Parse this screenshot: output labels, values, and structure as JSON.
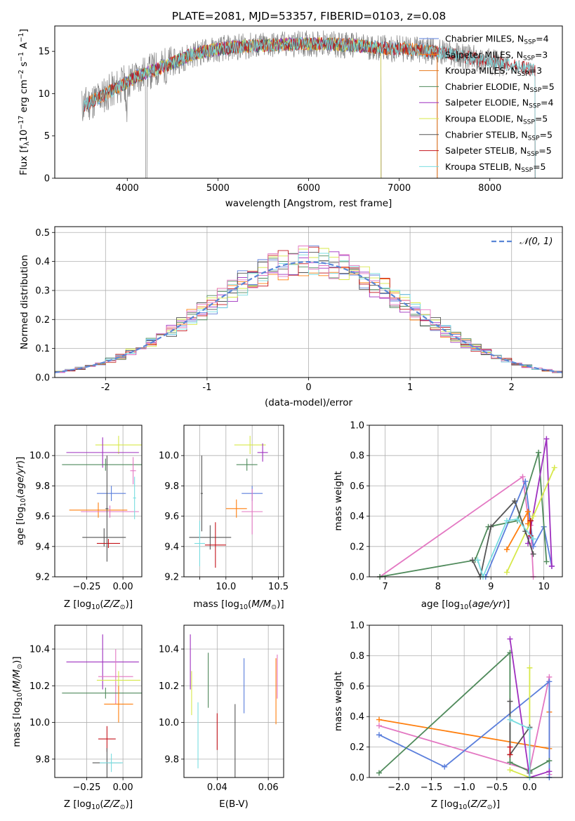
{
  "figure": {
    "title": "PLATE=2081, MJD=53357, FIBERID=0103, z=0.08",
    "model_colors": {
      "Chabrier MILES": "#5b7fdc",
      "Salpeter MILES": "#ff7f0e",
      "Kroupa MILES": "#e8781c",
      "Chabrier ELODIE": "#4f8a5b",
      "Salpeter ELODIE": "#9e2fbf",
      "Kroupa ELODIE": "#d7e84a",
      "Chabrier STELIB": "#555555",
      "Salpeter STELIB": "#c4141c",
      "Kroupa STELIB": "#79dde0"
    },
    "data_color": "#808080",
    "gaussian_color": "#5a86d6"
  },
  "chart_data": [
    {
      "type": "line",
      "panel": "spectrum",
      "xlabel": "wavelength [Angstrom, rest frame]",
      "ylabel": "Flux [f_λ10^-17 erg cm^-2 s^-1 A^-1]",
      "xlim": [
        3200,
        8800
      ],
      "ylim": [
        0,
        18
      ],
      "xticks": [
        4000,
        5000,
        6000,
        7000,
        8000
      ],
      "yticks": [
        0,
        5,
        10,
        15
      ],
      "grid": false,
      "legend_position": "right",
      "legend": [
        {
          "label": "Chabrier MILES, N",
          "sub": "SSP",
          "suffix": "=4",
          "color": "#5b7fdc"
        },
        {
          "label": "Salpeter MILES, N",
          "sub": "SSP",
          "suffix": "=3",
          "color": "#ff7f0e"
        },
        {
          "label": "Kroupa MILES, N",
          "sub": "SSP",
          "suffix": "=3",
          "color": "#e8781c"
        },
        {
          "label": "Chabrier ELODIE, N",
          "sub": "SSP",
          "suffix": "=5",
          "color": "#4f8a5b"
        },
        {
          "label": "Salpeter ELODIE, N",
          "sub": "SSP",
          "suffix": "=4",
          "color": "#9e2fbf"
        },
        {
          "label": "Kroupa ELODIE, N",
          "sub": "SSP",
          "suffix": "=5",
          "color": "#d7e84a"
        },
        {
          "label": "Chabrier STELIB, N",
          "sub": "SSP",
          "suffix": "=5",
          "color": "#555555"
        },
        {
          "label": "Salpeter STELIB, N",
          "sub": "SSP",
          "suffix": "=5",
          "color": "#c4141c"
        },
        {
          "label": "Kroupa STELIB, N",
          "sub": "SSP",
          "suffix": "=5",
          "color": "#79dde0"
        }
      ],
      "continuum": {
        "x": [
          3500,
          3700,
          3900,
          4100,
          4300,
          4500,
          4700,
          4900,
          5100,
          5300,
          5500,
          5700,
          5900,
          6100,
          6300,
          6500,
          6700,
          6900,
          7100,
          7300,
          7500,
          7700,
          7900,
          8100,
          8300,
          8500
        ],
        "y": [
          8.5,
          9.6,
          10.8,
          12.0,
          12.8,
          13.6,
          14.6,
          15.1,
          15.4,
          15.6,
          15.7,
          15.8,
          15.9,
          15.9,
          15.8,
          15.7,
          15.5,
          15.3,
          15.3,
          15.1,
          14.8,
          14.4,
          14.0,
          13.6,
          13.2,
          12.8
        ]
      },
      "model_ranges": {
        "MILES": [
          3520,
          7420
        ],
        "ELODIE": [
          3900,
          6800
        ],
        "STELIB": [
          3520,
          8500
        ]
      },
      "data_range": [
        3500,
        8200
      ]
    },
    {
      "type": "histogram",
      "panel": "residuals",
      "xlabel": "(data-model)/error",
      "ylabel": "Normed distribution",
      "xlim": [
        -2.5,
        2.5
      ],
      "ylim": [
        0,
        0.52
      ],
      "xticks": [
        -2,
        -1,
        0,
        1,
        2
      ],
      "yticks": [
        0.0,
        0.1,
        0.2,
        0.3,
        0.4,
        0.5
      ],
      "grid": true,
      "legend_position": "top-right",
      "gaussian_label": "𝒩(0, 1)",
      "bin_width": 0.1,
      "bin_start": -2.5,
      "series": [
        {
          "name": "Chabrier MILES",
          "color": "#5b7fdc",
          "seed": 1
        },
        {
          "name": "Salpeter MILES",
          "color": "#ff7f0e",
          "seed": 2
        },
        {
          "name": "Chabrier ELODIE",
          "color": "#4f8a5b",
          "seed": 3
        },
        {
          "name": "Salpeter ELODIE",
          "color": "#9e2fbf",
          "seed": 4
        },
        {
          "name": "Kroupa ELODIE",
          "color": "#d7e84a",
          "seed": 5
        },
        {
          "name": "Chabrier STELIB",
          "color": "#555555",
          "seed": 6
        },
        {
          "name": "Salpeter STELIB",
          "color": "#c4141c",
          "seed": 7
        },
        {
          "name": "Kroupa STELIB",
          "color": "#79dde0",
          "seed": 8
        },
        {
          "name": "Kroupa MILES",
          "color": "#e377c2",
          "seed": 9
        }
      ]
    },
    {
      "type": "scatter",
      "panel": "age-vs-Z",
      "xlabel": "Z [log10(Z/Z⊙)]",
      "ylabel": "age [log10(age/yr)]",
      "xlim": [
        -0.47,
        0.13
      ],
      "ylim": [
        9.2,
        10.2
      ],
      "xticks": [
        -0.25,
        0.0
      ],
      "xticklabels": [
        "−0.25",
        "0.00"
      ],
      "yticks": [
        9.2,
        9.4,
        9.6,
        9.8,
        10.0
      ],
      "grid": true,
      "points": [
        {
          "x": -0.03,
          "y": 10.07,
          "xerr": 0.16,
          "yerr": 0.06,
          "color": "#d7e84a"
        },
        {
          "x": -0.14,
          "y": 10.02,
          "xerr": 0.25,
          "yerr": 0.1,
          "color": "#9e2fbf"
        },
        {
          "x": -0.12,
          "y": 9.94,
          "xerr": 0.3,
          "yerr": 0.04,
          "color": "#4f8a5b"
        },
        {
          "x": 0.07,
          "y": 9.9,
          "xerr": 0.02,
          "yerr": 0.09,
          "color": "#e377c2"
        },
        {
          "x": -0.08,
          "y": 9.75,
          "xerr": 0.1,
          "yerr": 0.05,
          "color": "#5b7fdc"
        },
        {
          "x": -0.17,
          "y": 9.64,
          "xerr": 0.2,
          "yerr": 0.05,
          "color": "#ff7f0e"
        },
        {
          "x": -0.09,
          "y": 9.63,
          "xerr": 0.2,
          "yerr": 0.04,
          "color": "#e377c2"
        },
        {
          "x": 0.08,
          "y": 9.72,
          "xerr": 0.01,
          "yerr": 0.14,
          "color": "#79dde0"
        },
        {
          "x": -0.13,
          "y": 9.46,
          "xerr": 0.15,
          "yerr": 0.06,
          "color": "#555555"
        },
        {
          "x": -0.1,
          "y": 9.42,
          "xerr": 0.08,
          "yerr": 0.03,
          "color": "#c4141c"
        },
        {
          "x": -0.11,
          "y": 9.65,
          "xerr": 0.01,
          "yerr": 0.35,
          "color": "#555555"
        }
      ]
    },
    {
      "type": "scatter",
      "panel": "age-vs-mass",
      "xlabel": "mass [log10(M/M⊙)]",
      "ylabel": "",
      "xlim": [
        9.6,
        10.55
      ],
      "ylim": [
        9.2,
        10.2
      ],
      "xticks": [
        9.75,
        10.0,
        10.25,
        10.5
      ],
      "xticklabels": [
        "",
        "",
        "",
        "10.5"
      ],
      "axis_label_xticks": [
        "10.0",
        "10.5"
      ],
      "yticks": [
        9.2,
        9.4,
        9.6,
        9.8,
        10.0
      ],
      "grid": true,
      "points": [
        {
          "x": 10.23,
          "y": 10.07,
          "xerr": 0.15,
          "yerr": 0.06,
          "color": "#d7e84a"
        },
        {
          "x": 10.35,
          "y": 10.02,
          "xerr": 0.05,
          "yerr": 0.06,
          "color": "#9e2fbf"
        },
        {
          "x": 10.2,
          "y": 9.94,
          "xerr": 0.1,
          "yerr": 0.04,
          "color": "#4f8a5b"
        },
        {
          "x": 10.25,
          "y": 9.75,
          "xerr": 0.1,
          "yerr": 0.05,
          "color": "#5b7fdc"
        },
        {
          "x": 10.1,
          "y": 9.65,
          "xerr": 0.1,
          "yerr": 0.06,
          "color": "#ff7f0e"
        },
        {
          "x": 10.25,
          "y": 9.63,
          "xerr": 0.1,
          "yerr": 0.15,
          "color": "#e377c2"
        },
        {
          "x": 9.85,
          "y": 9.46,
          "xerr": 0.2,
          "yerr": 0.08,
          "color": "#555555"
        },
        {
          "x": 9.9,
          "y": 9.41,
          "xerr": 0.1,
          "yerr": 0.15,
          "color": "#c4141c"
        },
        {
          "x": 9.75,
          "y": 9.42,
          "xerr": 0.05,
          "yerr": 0.15,
          "color": "#79dde0"
        },
        {
          "x": 9.77,
          "y": 9.75,
          "xerr": 0.01,
          "yerr": 0.25,
          "color": "#555555"
        }
      ]
    },
    {
      "type": "line",
      "panel": "mass-weight-vs-age",
      "xlabel": "age [log10(age/yr)]",
      "ylabel": "mass weight",
      "xlim": [
        6.7,
        10.35
      ],
      "ylim": [
        0,
        1
      ],
      "xticks": [
        7,
        8,
        9,
        10
      ],
      "yticks": [
        0.0,
        0.2,
        0.4,
        0.6,
        0.8,
        1.0
      ],
      "grid": true,
      "series": [
        {
          "color": "#e377c2",
          "x": [
            6.9,
            9.6,
            9.7,
            9.75,
            9.8
          ],
          "y": [
            0.0,
            0.66,
            0.4,
            0.34,
            0.0
          ]
        },
        {
          "color": "#5b7fdc",
          "x": [
            8.9,
            9.65,
            9.8,
            10.0,
            10.15
          ],
          "y": [
            0.0,
            0.63,
            0.2,
            0.33,
            0.07
          ]
        },
        {
          "color": "#ff7f0e",
          "x": [
            9.3,
            9.7,
            9.7,
            9.75
          ],
          "y": [
            0.18,
            0.43,
            0.35,
            0.37
          ]
        },
        {
          "color": "#4f8a5b",
          "x": [
            6.9,
            8.7,
            8.95,
            9.5,
            9.9,
            10.05
          ],
          "y": [
            0.0,
            0.11,
            0.33,
            0.37,
            0.82,
            0.1
          ]
        },
        {
          "color": "#9e2fbf",
          "x": [
            9.7,
            10.05,
            10.15
          ],
          "y": [
            0.22,
            0.91,
            0.07
          ]
        },
        {
          "color": "#d7e84a",
          "x": [
            9.3,
            9.8,
            10.2
          ],
          "y": [
            0.03,
            0.4,
            0.72
          ]
        },
        {
          "color": "#555555",
          "x": [
            8.65,
            8.8,
            9.0,
            9.45,
            9.65,
            9.8
          ],
          "y": [
            0.11,
            0.0,
            0.33,
            0.5,
            0.3,
            0.15
          ]
        },
        {
          "color": "#c4141c",
          "x": [
            9.75,
            9.75
          ],
          "y": [
            0.27,
            0.37
          ]
        },
        {
          "color": "#79dde0",
          "x": [
            8.75,
            8.85,
            9.3,
            9.5,
            9.8
          ],
          "y": [
            0.11,
            0.0,
            0.37,
            0.38,
            0.25
          ]
        }
      ]
    },
    {
      "type": "scatter",
      "panel": "mass-vs-Z",
      "xlabel": "Z [log10(Z/Z⊙)]",
      "ylabel": "mass [log10(M/M⊙)]",
      "xlim": [
        -0.47,
        0.13
      ],
      "ylim": [
        9.7,
        10.53
      ],
      "xticks": [
        -0.25,
        0.0
      ],
      "xticklabels": [
        "−0.25",
        "0.00"
      ],
      "yticks": [
        9.8,
        10.0,
        10.2,
        10.4
      ],
      "grid": true,
      "points": [
        {
          "x": -0.14,
          "y": 10.33,
          "xerr": 0.25,
          "yerr": 0.15,
          "color": "#9e2fbf"
        },
        {
          "x": -0.05,
          "y": 10.25,
          "xerr": 0.12,
          "yerr": 0.15,
          "color": "#e377c2"
        },
        {
          "x": -0.03,
          "y": 10.23,
          "xerr": 0.15,
          "yerr": 0.05,
          "color": "#d7e84a"
        },
        {
          "x": -0.12,
          "y": 10.16,
          "xerr": 0.3,
          "yerr": 0.03,
          "color": "#4f8a5b"
        },
        {
          "x": -0.03,
          "y": 10.1,
          "xerr": 0.1,
          "yerr": 0.1,
          "color": "#ff7f0e"
        },
        {
          "x": -0.11,
          "y": 9.91,
          "xerr": 0.06,
          "yerr": 0.07,
          "color": "#c4141c"
        },
        {
          "x": -0.11,
          "y": 9.78,
          "xerr": 0.1,
          "yerr": 0.08,
          "color": "#555555"
        },
        {
          "x": -0.08,
          "y": 9.78,
          "xerr": 0.08,
          "yerr": 0.05,
          "color": "#79dde0"
        }
      ]
    },
    {
      "type": "scatter",
      "panel": "mass-vs-ebv",
      "xlabel": "E(B-V)",
      "ylabel": "",
      "xlim": [
        0.027,
        0.066
      ],
      "ylim": [
        9.7,
        10.53
      ],
      "xticks": [
        0.04,
        0.06
      ],
      "yticks": [
        9.8,
        10.0,
        10.2,
        10.4
      ],
      "grid": true,
      "points": [
        {
          "x": 0.0295,
          "y": 10.33,
          "yerr": 0.15,
          "color": "#9e2fbf"
        },
        {
          "x": 0.03,
          "y": 10.16,
          "yerr": 0.12,
          "color": "#d7e84a"
        },
        {
          "x": 0.0325,
          "y": 9.93,
          "yerr": 0.18,
          "color": "#79dde0"
        },
        {
          "x": 0.0365,
          "y": 10.23,
          "yerr": 0.15,
          "color": "#4f8a5b"
        },
        {
          "x": 0.04,
          "y": 9.95,
          "yerr": 0.1,
          "color": "#c4141c"
        },
        {
          "x": 0.047,
          "y": 9.9,
          "yerr": 0.2,
          "color": "#555555"
        },
        {
          "x": 0.0505,
          "y": 10.2,
          "yerr": 0.15,
          "color": "#5b7fdc"
        },
        {
          "x": 0.063,
          "y": 10.17,
          "yerr": 0.18,
          "color": "#ff7f0e"
        },
        {
          "x": 0.0635,
          "y": 10.25,
          "yerr": 0.12,
          "color": "#e377c2"
        }
      ]
    },
    {
      "type": "line",
      "panel": "mass-weight-vs-Z",
      "xlabel": "Z [log10(Z/Z⊙)]",
      "ylabel": "mass weight",
      "xlim": [
        -2.45,
        0.5
      ],
      "ylim": [
        0,
        1
      ],
      "xticks": [
        -2.0,
        -1.5,
        -1.0,
        -0.5,
        0.0
      ],
      "xticklabels": [
        "−2.0",
        "−1.5",
        "−1.0",
        "−0.5",
        "0.0"
      ],
      "yticks": [
        0.0,
        0.2,
        0.4,
        0.6,
        0.8,
        1.0
      ],
      "grid": true,
      "series": [
        {
          "color": "#ff7f0e",
          "x": [
            -2.3,
            0.3,
            0.3
          ],
          "y": [
            0.38,
            0.19,
            0.43
          ]
        },
        {
          "color": "#e377c2",
          "x": [
            -2.3,
            0.0,
            0.3,
            0.3
          ],
          "y": [
            0.34,
            0.05,
            0.66,
            0.02
          ]
        },
        {
          "color": "#5b7fdc",
          "x": [
            -2.3,
            -1.3,
            0.3,
            0.3
          ],
          "y": [
            0.28,
            0.07,
            0.63,
            0.0
          ]
        },
        {
          "color": "#4f8a5b",
          "x": [
            -2.3,
            -0.3,
            -0.3,
            0.0,
            0.3
          ],
          "y": [
            0.03,
            0.82,
            0.1,
            0.04,
            0.11
          ]
        },
        {
          "color": "#9e2fbf",
          "x": [
            -0.3,
            0.0,
            0.3
          ],
          "y": [
            0.91,
            0.0,
            0.04
          ]
        },
        {
          "color": "#d7e84a",
          "x": [
            -0.3,
            0.0,
            0.0
          ],
          "y": [
            0.05,
            0.0,
            0.72
          ]
        },
        {
          "color": "#555555",
          "x": [
            -0.3,
            -0.3,
            0.0,
            0.0
          ],
          "y": [
            0.5,
            0.15,
            0.33,
            0.03
          ]
        },
        {
          "color": "#c4141c",
          "x": [
            -0.3,
            -0.3
          ],
          "y": [
            0.2,
            0.15
          ]
        },
        {
          "color": "#79dde0",
          "x": [
            -0.3,
            0.0,
            0.0
          ],
          "y": [
            0.38,
            0.32,
            0.0
          ]
        }
      ]
    }
  ]
}
